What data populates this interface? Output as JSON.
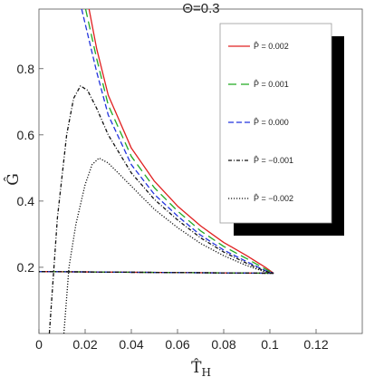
{
  "chart_data": {
    "type": "line",
    "title": "Θ=0.3",
    "xlabel": "T̂",
    "xlabel_sub": "H",
    "ylabel": "Ĝ",
    "xlim": [
      0,
      0.14
    ],
    "ylim": [
      0,
      0.98
    ],
    "xticks": [
      "0",
      "0.02",
      "0.04",
      "0.06",
      "0.08",
      "0.1",
      "0.12"
    ],
    "xtick_values": [
      0,
      0.02,
      0.04,
      0.06,
      0.08,
      0.1,
      0.12
    ],
    "yticks": [
      "0.2",
      "0.4",
      "0.6",
      "0.8"
    ],
    "ytick_values": [
      0.2,
      0.4,
      0.6,
      0.8
    ],
    "legend_position": "top-right",
    "series": [
      {
        "name": "P̂ = 0.002",
        "color": "#e02020",
        "dash": "solid",
        "upper": [
          [
            0.0217,
            0.98
          ],
          [
            0.025,
            0.86
          ],
          [
            0.03,
            0.72
          ],
          [
            0.04,
            0.56
          ],
          [
            0.05,
            0.46
          ],
          [
            0.06,
            0.385
          ],
          [
            0.07,
            0.325
          ],
          [
            0.08,
            0.275
          ],
          [
            0.09,
            0.235
          ],
          [
            0.098,
            0.2
          ],
          [
            0.1016,
            0.182
          ]
        ],
        "lower": [
          [
            0.1016,
            0.182
          ],
          [
            0.08,
            0.183
          ],
          [
            0.06,
            0.184
          ],
          [
            0.04,
            0.185
          ],
          [
            0.02,
            0.186
          ],
          [
            0,
            0.187
          ]
        ]
      },
      {
        "name": "P̂ = 0.001",
        "color": "#22aa22",
        "dash": "long-dash",
        "upper": [
          [
            0.0202,
            0.98
          ],
          [
            0.025,
            0.83
          ],
          [
            0.03,
            0.69
          ],
          [
            0.04,
            0.535
          ],
          [
            0.05,
            0.44
          ],
          [
            0.06,
            0.37
          ],
          [
            0.07,
            0.31
          ],
          [
            0.08,
            0.263
          ],
          [
            0.09,
            0.226
          ],
          [
            0.098,
            0.195
          ],
          [
            0.1016,
            0.182
          ]
        ],
        "lower": [
          [
            0.1016,
            0.182
          ],
          [
            0.08,
            0.183
          ],
          [
            0.06,
            0.184
          ],
          [
            0.04,
            0.185
          ],
          [
            0.02,
            0.186
          ],
          [
            0,
            0.187
          ]
        ]
      },
      {
        "name": "P̂ = 0.000",
        "color": "#2233dd",
        "dash": "dash",
        "upper": [
          [
            0.0185,
            0.98
          ],
          [
            0.025,
            0.79
          ],
          [
            0.03,
            0.66
          ],
          [
            0.04,
            0.51
          ],
          [
            0.05,
            0.42
          ],
          [
            0.06,
            0.355
          ],
          [
            0.07,
            0.297
          ],
          [
            0.08,
            0.252
          ],
          [
            0.09,
            0.217
          ],
          [
            0.098,
            0.19
          ],
          [
            0.1016,
            0.182
          ]
        ],
        "lower": [
          [
            0.1016,
            0.182
          ],
          [
            0.08,
            0.183
          ],
          [
            0.06,
            0.184
          ],
          [
            0.04,
            0.185
          ],
          [
            0.02,
            0.186
          ],
          [
            0,
            0.187
          ]
        ]
      },
      {
        "name": "P̂ = −0.001",
        "color": "#111111",
        "dash": "dash-dot",
        "upper": [
          [
            0.0045,
            0
          ],
          [
            0.008,
            0.35
          ],
          [
            0.012,
            0.6
          ],
          [
            0.015,
            0.71
          ],
          [
            0.018,
            0.748
          ],
          [
            0.021,
            0.735
          ],
          [
            0.025,
            0.68
          ],
          [
            0.03,
            0.6
          ],
          [
            0.04,
            0.485
          ],
          [
            0.05,
            0.405
          ],
          [
            0.06,
            0.343
          ],
          [
            0.07,
            0.289
          ],
          [
            0.08,
            0.246
          ],
          [
            0.09,
            0.212
          ],
          [
            0.098,
            0.188
          ],
          [
            0.1016,
            0.182
          ]
        ],
        "lower": [
          [
            0.1016,
            0.182
          ],
          [
            0.08,
            0.183
          ],
          [
            0.06,
            0.184
          ],
          [
            0.04,
            0.185
          ],
          [
            0.02,
            0.186
          ],
          [
            0,
            0.187
          ]
        ]
      },
      {
        "name": "P̂ = −0.002",
        "color": "#111111",
        "dash": "dot",
        "upper": [
          [
            0.0108,
            0
          ],
          [
            0.013,
            0.2
          ],
          [
            0.016,
            0.33
          ],
          [
            0.02,
            0.45
          ],
          [
            0.023,
            0.51
          ],
          [
            0.026,
            0.53
          ],
          [
            0.03,
            0.515
          ],
          [
            0.035,
            0.48
          ],
          [
            0.04,
            0.445
          ],
          [
            0.05,
            0.375
          ],
          [
            0.06,
            0.32
          ],
          [
            0.07,
            0.272
          ],
          [
            0.08,
            0.235
          ],
          [
            0.09,
            0.205
          ],
          [
            0.098,
            0.186
          ],
          [
            0.1016,
            0.182
          ]
        ],
        "lower": [
          [
            0.1016,
            0.182
          ],
          [
            0.08,
            0.183
          ],
          [
            0.06,
            0.184
          ],
          [
            0.04,
            0.185
          ],
          [
            0.02,
            0.186
          ],
          [
            0,
            0.187
          ]
        ]
      }
    ]
  }
}
